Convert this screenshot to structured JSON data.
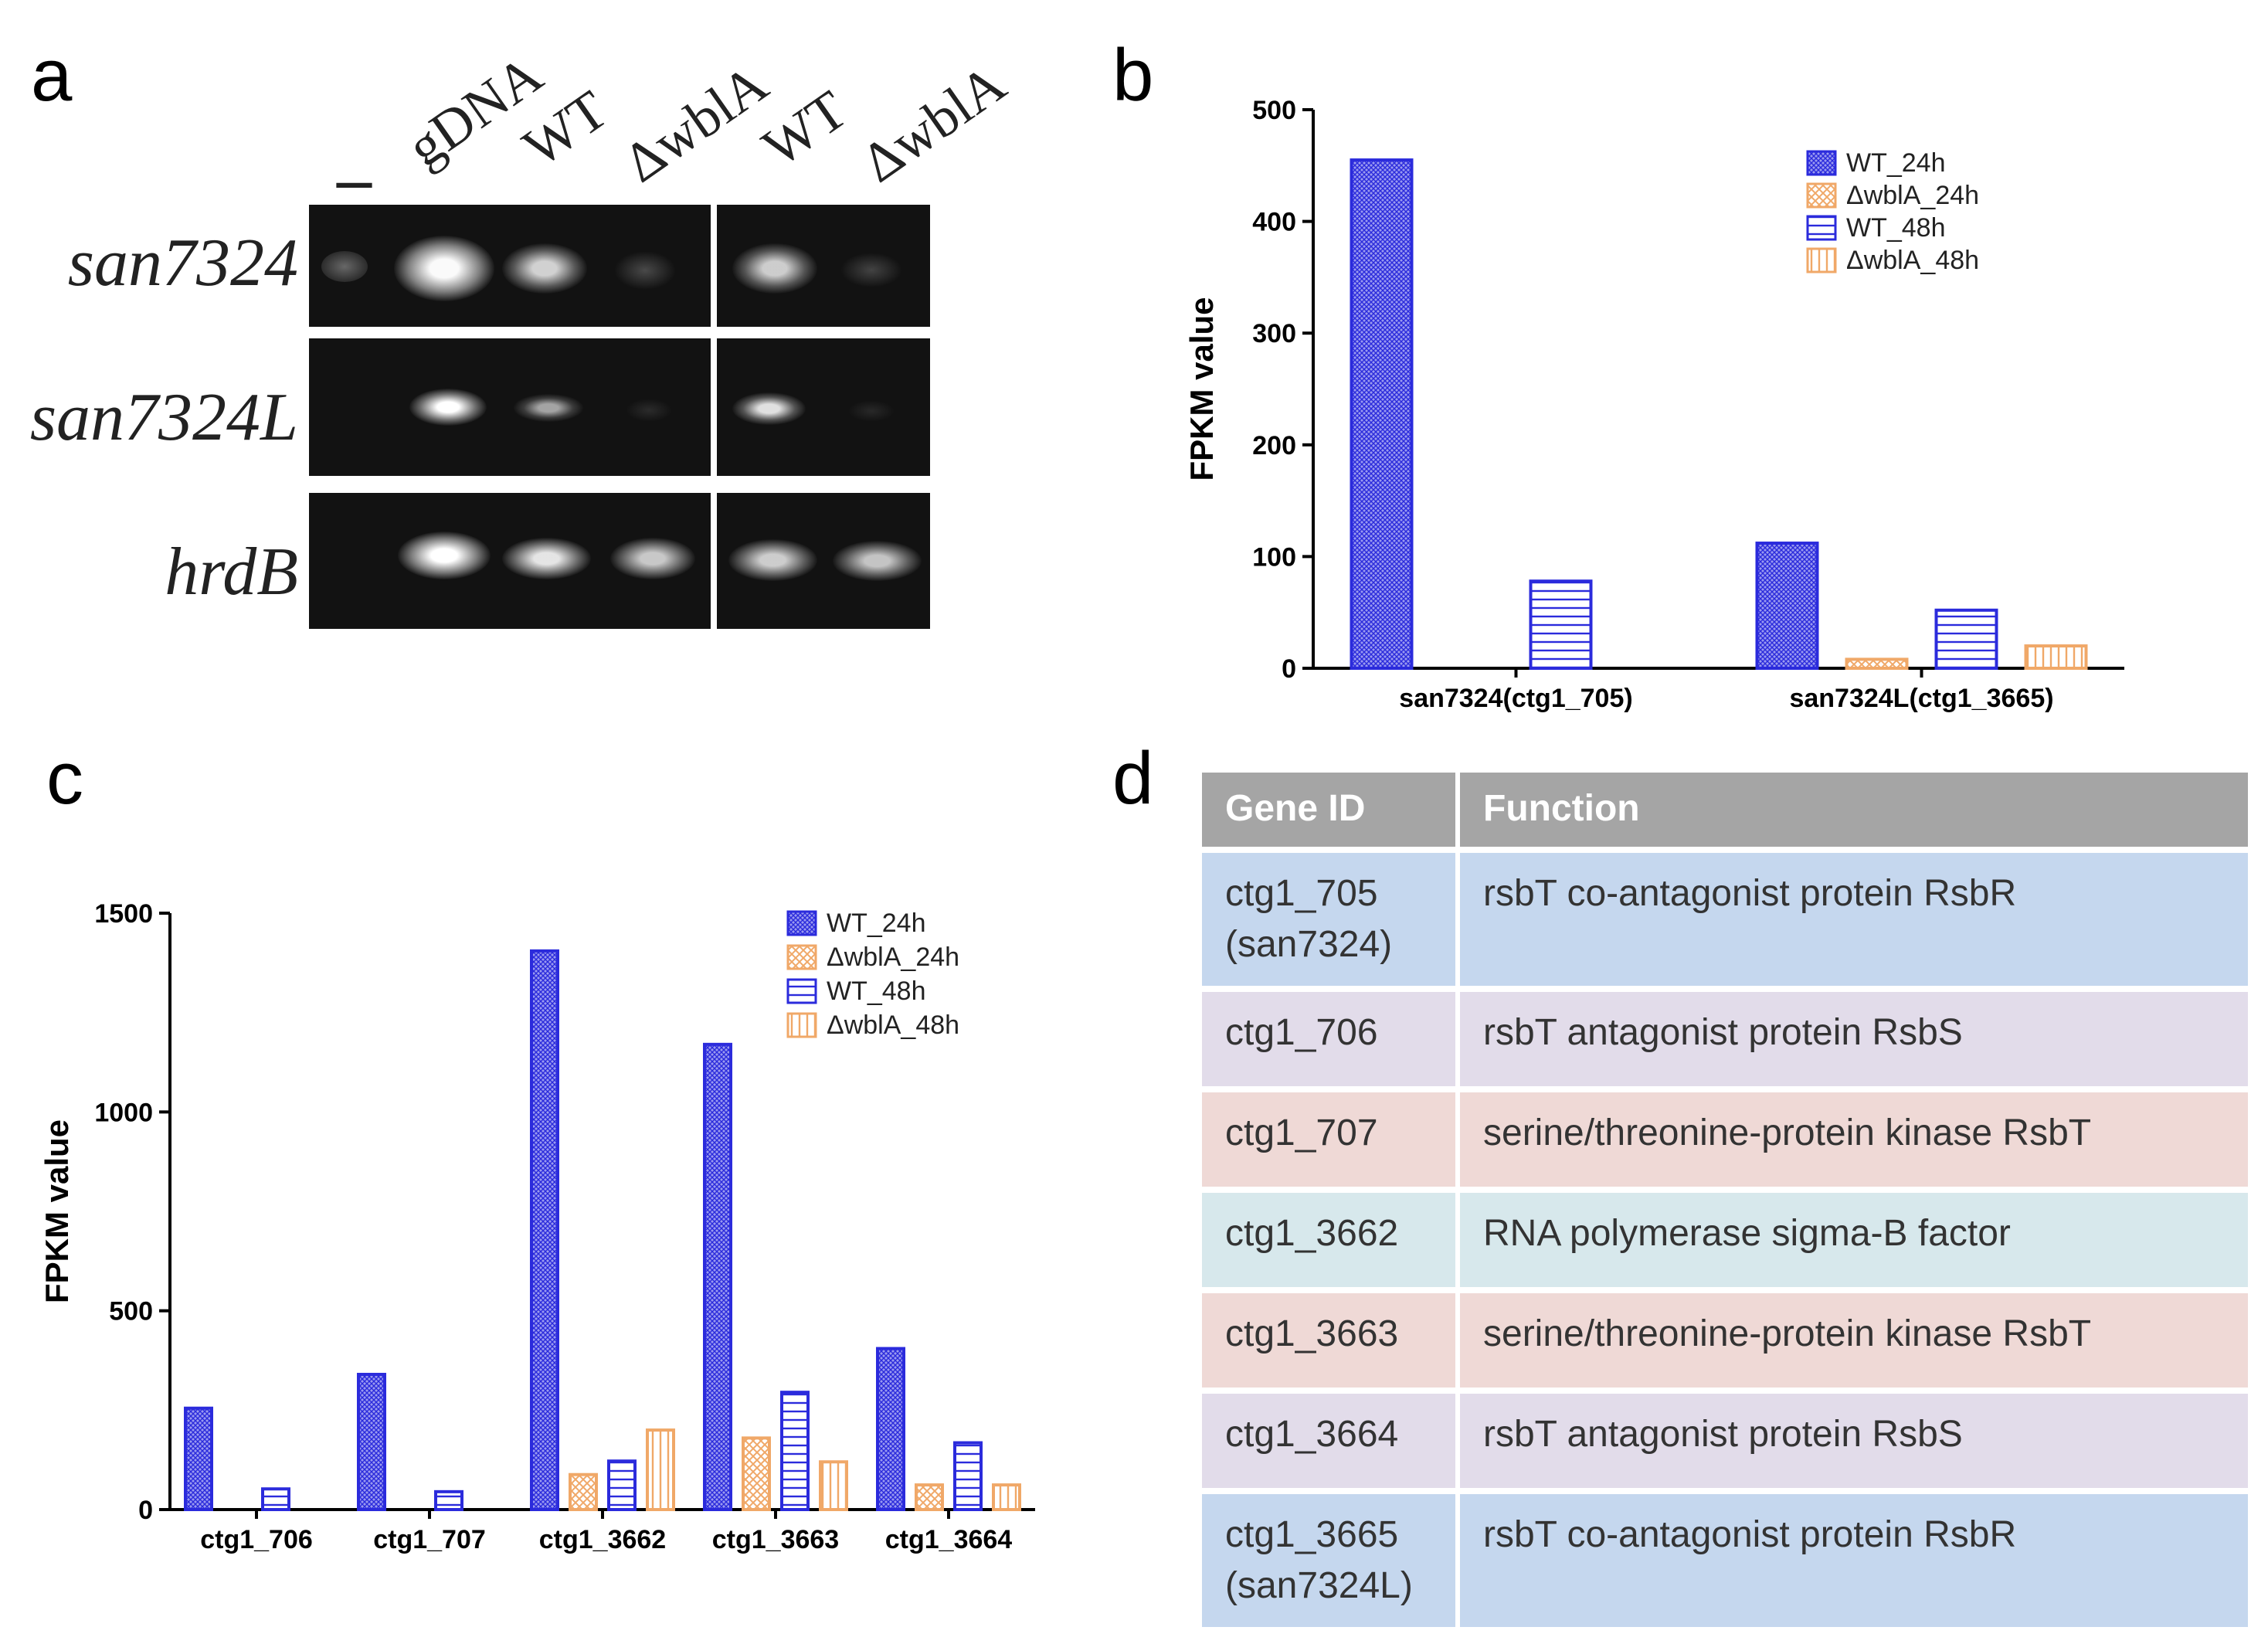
{
  "panels": {
    "a": "a",
    "b": "b",
    "c": "c",
    "d": "d"
  },
  "gel": {
    "lanes": [
      "–",
      "gDNA",
      "WT",
      "ΔwblA",
      "WT",
      "ΔwblA"
    ],
    "genes": [
      "san7324",
      "san7324L",
      "hrdB"
    ]
  },
  "legend": [
    "WT_24h",
    "ΔwblA_24h",
    "WT_48h",
    "ΔwblA_48h"
  ],
  "colors": {
    "wt": "#2b2bdc",
    "wt_fill": "#9a9af0",
    "mutant": "#f0a868",
    "mutant_fill": "#fbe2c8"
  },
  "chart_data": [
    {
      "id": "b",
      "type": "bar",
      "title": "",
      "xlabel": "",
      "ylabel": "FPKM value",
      "ylim": [
        0,
        500
      ],
      "yticks": [
        0,
        100,
        200,
        300,
        400,
        500
      ],
      "categories": [
        "san7324(ctg1_705)",
        "san7324L(ctg1_3665)"
      ],
      "series": [
        {
          "name": "WT_24h",
          "values": [
            455,
            112
          ]
        },
        {
          "name": "ΔwblA_24h",
          "values": [
            0,
            8
          ]
        },
        {
          "name": "WT_48h",
          "values": [
            78,
            52
          ]
        },
        {
          "name": "ΔwblA_48h",
          "values": [
            0,
            20
          ]
        }
      ],
      "legend_position": "top-right"
    },
    {
      "id": "c",
      "type": "bar",
      "title": "",
      "xlabel": "",
      "ylabel": "FPKM value",
      "ylim": [
        0,
        1500
      ],
      "yticks": [
        0,
        500,
        1000,
        1500
      ],
      "categories": [
        "ctg1_706",
        "ctg1_707",
        "ctg1_3662",
        "ctg1_3663",
        "ctg1_3664"
      ],
      "series": [
        {
          "name": "WT_24h",
          "values": [
            255,
            340,
            1405,
            1170,
            405
          ]
        },
        {
          "name": "ΔwblA_24h",
          "values": [
            0,
            0,
            88,
            180,
            62
          ]
        },
        {
          "name": "WT_48h",
          "values": [
            52,
            45,
            122,
            295,
            168
          ]
        },
        {
          "name": "ΔwblA_48h",
          "values": [
            0,
            0,
            200,
            120,
            62
          ]
        }
      ],
      "legend_position": "top-right"
    }
  ],
  "table": {
    "headers": [
      "Gene ID",
      "Function"
    ],
    "rows": [
      {
        "id": "ctg1_705\n(san7324)",
        "function": "rsbT co-antagonist protein RsbR"
      },
      {
        "id": "ctg1_706",
        "function": "rsbT antagonist protein RsbS"
      },
      {
        "id": "ctg1_707",
        "function": "serine/threonine-protein  kinase RsbT"
      },
      {
        "id": "ctg1_3662",
        "function": "RNA polymerase  sigma-B factor"
      },
      {
        "id": "ctg1_3663",
        "function": "serine/threonine-protein  kinase RsbT"
      },
      {
        "id": "ctg1_3664",
        "function": "rsbT antagonist protein RsbS"
      },
      {
        "id": "ctg1_3665\n(san7324L)",
        "function": "rsbT co-antagonist protein RsbR"
      }
    ],
    "row_colors": [
      "#c5d7ee",
      "#e2dcea",
      "#efd9d6",
      "#d7e8ec",
      "#efd9d6",
      "#e2dcea",
      "#c5d7ee"
    ],
    "header_color": "#a5a5a5"
  }
}
